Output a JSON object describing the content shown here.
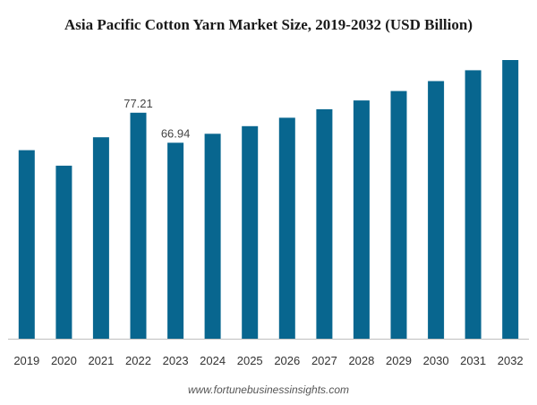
{
  "chart_data": {
    "type": "bar",
    "title": "Asia Pacific Cotton Yarn Market Size, 2019-2032 (USD Billion)",
    "categories": [
      "2019",
      "2020",
      "2021",
      "2022",
      "2023",
      "2024",
      "2025",
      "2026",
      "2027",
      "2028",
      "2029",
      "2030",
      "2031",
      "2032"
    ],
    "values": [
      64.4,
      59.1,
      68.8,
      77.21,
      66.94,
      70.0,
      72.6,
      75.5,
      78.4,
      81.4,
      84.6,
      88.0,
      91.7,
      95.2
    ],
    "data_labels": [
      {
        "category": "2022",
        "text": "77.21"
      },
      {
        "category": "2023",
        "text": "66.94"
      }
    ],
    "xlabel": "",
    "ylabel": "",
    "ylim": [
      0,
      95.2
    ],
    "grid": false,
    "legend": "none",
    "bar_color": "#08668f",
    "axis_color": "#bfbfbf"
  },
  "source": "www.fortunebusinessinsights.com"
}
